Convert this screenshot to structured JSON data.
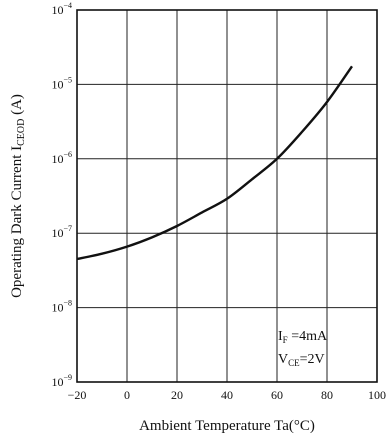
{
  "chart_data": {
    "type": "line",
    "xlabel": "Ambient Temperature  Ta(°C)",
    "ylabel": "Operating Dark Current ICEOD (A)",
    "ylabel_main": "Operating Dark Current I",
    "ylabel_sub": "CEOD",
    "ylabel_unit": " (A)",
    "x_scale": "linear",
    "y_scale": "log",
    "xlim": [
      -20,
      100
    ],
    "ylim": [
      1e-09,
      0.0001
    ],
    "grid": true,
    "x_ticks": [
      -20,
      0,
      20,
      40,
      60,
      80,
      100
    ],
    "x_tick_labels": [
      "−20",
      "0",
      "20",
      "40",
      "60",
      "80",
      "100"
    ],
    "y_ticks": [
      {
        "value": 1e-09,
        "base": "10",
        "exp": "−9"
      },
      {
        "value": 1e-08,
        "base": "10",
        "exp": "−8"
      },
      {
        "value": 1e-07,
        "base": "10",
        "exp": "−7"
      },
      {
        "value": 1e-06,
        "base": "10",
        "exp": "−6"
      },
      {
        "value": 1e-05,
        "base": "10",
        "exp": "−5"
      },
      {
        "value": 0.0001,
        "base": "10",
        "exp": "−4"
      }
    ],
    "series": [
      {
        "x": [
          -20,
          -10,
          0,
          10,
          20,
          30,
          40,
          50,
          60,
          70,
          80,
          90
        ],
        "y": [
          4.5e-08,
          5.3e-08,
          6.6e-08,
          8.8e-08,
          1.25e-07,
          1.9e-07,
          2.9e-07,
          5.3e-07,
          1e-06,
          2.3e-06,
          5.8e-06,
          1.75e-05
        ]
      }
    ],
    "annotation": {
      "line1_main": "I",
      "line1_sub": "F",
      "line1_rest": " =4mA",
      "line2_main": "V",
      "line2_sub": "CE",
      "line2_rest": "=2V"
    }
  }
}
